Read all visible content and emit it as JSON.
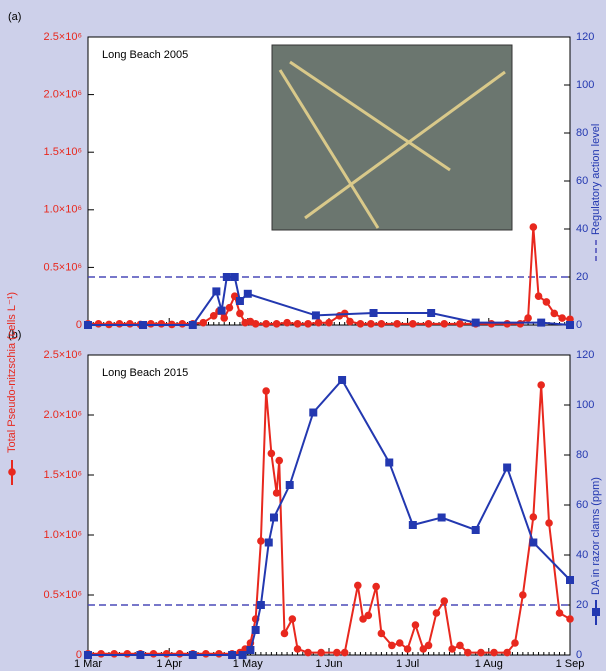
{
  "chart_data": [
    {
      "type": "line",
      "panel_label": "(a)",
      "annotation": "Long Beach 2005",
      "xlim": [
        0,
        184
      ],
      "ylim": [
        0,
        2500000
      ],
      "y2lim": [
        0,
        120
      ],
      "yticks": [
        0,
        {
          "value": 500000,
          "label": "0.5×10⁶"
        },
        {
          "value": 1000000,
          "label": "1.0×10⁶"
        },
        {
          "value": 1500000,
          "label": "1.5×10⁶"
        },
        {
          "value": 2000000,
          "label": "2.0×10⁶"
        },
        {
          "value": 2500000,
          "label": "2.5×10⁶"
        }
      ],
      "y2ticks": [
        0,
        20,
        40,
        60,
        80,
        100,
        120
      ],
      "y2_label": "Regulatory action level",
      "reference_line": {
        "value": 20,
        "axis": "y2",
        "color": "#4a4ab8"
      },
      "series": [
        {
          "color": "#e8281e",
          "marker": "circle",
          "axis": "y",
          "x": [
            0,
            4,
            8,
            12,
            16,
            20,
            24,
            28,
            32,
            36,
            40,
            44,
            48,
            50,
            52,
            54,
            56,
            58,
            60,
            62,
            64,
            68,
            72,
            76,
            80,
            84,
            88,
            92,
            96,
            98,
            100,
            104,
            108,
            112,
            118,
            124,
            130,
            136,
            142,
            148,
            154,
            160,
            165,
            168,
            170,
            172,
            175,
            178,
            181,
            184
          ],
          "values": [
            10000,
            10000,
            5000,
            10000,
            10000,
            5000,
            10000,
            10000,
            5000,
            10000,
            10000,
            20000,
            80000,
            120000,
            60000,
            150000,
            250000,
            100000,
            20000,
            30000,
            10000,
            10000,
            10000,
            20000,
            10000,
            10000,
            20000,
            20000,
            80000,
            100000,
            30000,
            10000,
            10000,
            10000,
            10000,
            10000,
            10000,
            10000,
            10000,
            10000,
            10000,
            10000,
            10000,
            60000,
            850000,
            250000,
            200000,
            100000,
            60000,
            50000
          ]
        },
        {
          "color": "#2338b0",
          "marker": "square",
          "axis": "y2",
          "x": [
            0,
            21,
            40,
            49,
            51,
            53,
            56,
            58,
            61,
            87,
            109,
            131,
            148,
            173,
            184
          ],
          "values": [
            0,
            0,
            0,
            14,
            6,
            20,
            20,
            10,
            13,
            4,
            5,
            5,
            1,
            1,
            0
          ]
        }
      ]
    },
    {
      "type": "line",
      "panel_label": "(b)",
      "annotation": "Long Beach 2015",
      "xlim": [
        0,
        184
      ],
      "ylim": [
        0,
        2500000
      ],
      "y2lim": [
        0,
        120
      ],
      "xticks": [
        {
          "value": 0,
          "label": "1 Mar"
        },
        {
          "value": 31,
          "label": "1 Apr"
        },
        {
          "value": 61,
          "label": "1 May"
        },
        {
          "value": 92,
          "label": "1 Jun"
        },
        {
          "value": 122,
          "label": "1 Jul"
        },
        {
          "value": 153,
          "label": "1 Aug"
        },
        {
          "value": 184,
          "label": "1 Sep"
        }
      ],
      "yticks": [
        0,
        {
          "value": 500000,
          "label": "0.5×10⁶"
        },
        {
          "value": 1000000,
          "label": "1.0×10⁶"
        },
        {
          "value": 1500000,
          "label": "1.5×10⁶"
        },
        {
          "value": 2000000,
          "label": "2.0×10⁶"
        },
        {
          "value": 2500000,
          "label": "2.5×10⁶"
        }
      ],
      "y2ticks": [
        0,
        20,
        40,
        60,
        80,
        100,
        120
      ],
      "y_label": "Total Pseudo-nitzschia (cells L⁻¹)",
      "y2_label": "DA in razor clams (ppm)",
      "reference_line": {
        "value": 20,
        "axis": "y2",
        "color": "#4a4ab8"
      },
      "series": [
        {
          "color": "#e8281e",
          "marker": "circle",
          "axis": "y",
          "x": [
            0,
            5,
            10,
            15,
            20,
            25,
            30,
            35,
            40,
            45,
            50,
            55,
            58,
            60,
            62,
            64,
            66,
            68,
            70,
            72,
            73,
            75,
            78,
            80,
            84,
            89,
            95,
            98,
            103,
            105,
            107,
            110,
            112,
            116,
            119,
            122,
            125,
            128,
            130,
            133,
            136,
            139,
            142,
            145,
            150,
            155,
            160,
            163,
            166,
            170,
            173,
            176,
            180,
            184
          ],
          "values": [
            10000,
            10000,
            10000,
            10000,
            10000,
            10000,
            10000,
            10000,
            10000,
            10000,
            10000,
            10000,
            20000,
            50000,
            100000,
            300000,
            950000,
            2200000,
            1680000,
            1350000,
            1620000,
            180000,
            300000,
            50000,
            20000,
            20000,
            20000,
            20000,
            580000,
            300000,
            330000,
            570000,
            180000,
            80000,
            100000,
            50000,
            250000,
            50000,
            80000,
            350000,
            450000,
            50000,
            80000,
            20000,
            20000,
            20000,
            20000,
            100000,
            500000,
            1150000,
            2250000,
            1100000,
            350000,
            300000
          ]
        },
        {
          "color": "#2338b0",
          "marker": "square",
          "axis": "y2",
          "x": [
            0,
            20,
            40,
            55,
            59,
            62,
            64,
            66,
            69,
            71,
            77,
            86,
            97,
            115,
            124,
            135,
            148,
            160,
            170,
            184
          ],
          "values": [
            0,
            0,
            0,
            0,
            0,
            2,
            10,
            20,
            45,
            55,
            68,
            97,
            110,
            77,
            52,
            55,
            50,
            75,
            45,
            30
          ]
        }
      ]
    }
  ]
}
